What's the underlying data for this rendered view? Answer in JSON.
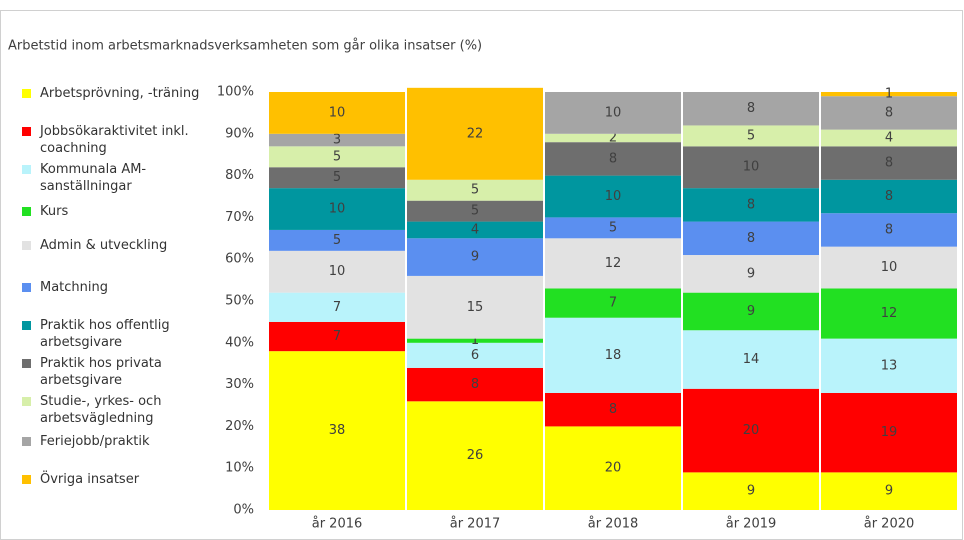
{
  "chart_data": {
    "type": "stacked_bar",
    "title": "Arbetstid inom arbetsmarknadsverksamheten som går olika insatser (%)",
    "categories": [
      "år 2016",
      "år 2017",
      "år 2018",
      "år 2019",
      "år 2020"
    ],
    "series": [
      {
        "name": "Arbetsprövning, -träning",
        "color": "#ffff00",
        "values": [
          38,
          26,
          20,
          9,
          9
        ]
      },
      {
        "name": "Jobbsökaraktivitet inkl. coachning",
        "color": "#ff0000",
        "values": [
          7,
          8,
          8,
          20,
          19
        ]
      },
      {
        "name": "Kommunala AM-sanställningar",
        "color": "#b9f3fb",
        "values": [
          7,
          6,
          18,
          14,
          13
        ]
      },
      {
        "name": "Kurs",
        "color": "#22e022",
        "values": [
          null,
          1,
          7,
          9,
          12
        ]
      },
      {
        "name": "Admin & utveckling",
        "color": "#e2e2e2",
        "values": [
          10,
          15,
          12,
          9,
          10
        ]
      },
      {
        "name": "Matchning",
        "color": "#5b8ff0",
        "values": [
          5,
          9,
          5,
          8,
          8
        ]
      },
      {
        "name": "Praktik hos offentlig arbetsgivare",
        "color": "#00969f",
        "values": [
          10,
          4,
          10,
          8,
          8
        ]
      },
      {
        "name": "Praktik hos privata arbetsgivare",
        "color": "#6e6e6e",
        "values": [
          5,
          5,
          8,
          10,
          8
        ]
      },
      {
        "name": "Studie-, yrkes- och arbetsvägledning",
        "color": "#d7efaa",
        "values": [
          5,
          5,
          2,
          5,
          4
        ]
      },
      {
        "name": "Feriejobb/praktik",
        "color": "#a5a5a5",
        "values": [
          3,
          null,
          10,
          8,
          8
        ]
      },
      {
        "name": "Övriga insatser",
        "color": "#ffc000",
        "values": [
          10,
          22,
          null,
          null,
          1
        ]
      }
    ],
    "ylim": [
      0,
      100
    ],
    "yticks": [
      {
        "value": 0,
        "label": "0%"
      },
      {
        "value": 10,
        "label": "10%"
      },
      {
        "value": 20,
        "label": "20%"
      },
      {
        "value": 30,
        "label": "30%"
      },
      {
        "value": 40,
        "label": "40%"
      },
      {
        "value": 50,
        "label": "50%"
      },
      {
        "value": 60,
        "label": "60%"
      },
      {
        "value": 70,
        "label": "70%"
      },
      {
        "value": 80,
        "label": "80%"
      },
      {
        "value": 90,
        "label": "90%"
      },
      {
        "value": 100,
        "label": "100%"
      }
    ],
    "legend": "left"
  }
}
